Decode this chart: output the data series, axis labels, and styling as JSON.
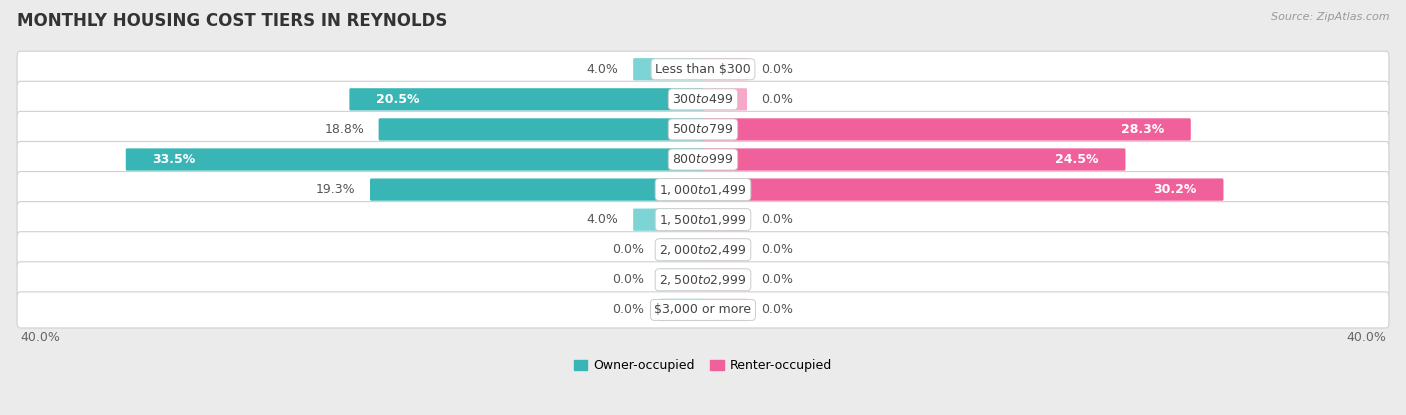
{
  "title": "MONTHLY HOUSING COST TIERS IN REYNOLDS",
  "source": "Source: ZipAtlas.com",
  "categories": [
    "Less than $300",
    "$300 to $499",
    "$500 to $799",
    "$800 to $999",
    "$1,000 to $1,499",
    "$1,500 to $1,999",
    "$2,000 to $2,499",
    "$2,500 to $2,999",
    "$3,000 or more"
  ],
  "owner_values": [
    4.0,
    20.5,
    18.8,
    33.5,
    19.3,
    4.0,
    0.0,
    0.0,
    0.0
  ],
  "renter_values": [
    0.0,
    0.0,
    28.3,
    24.5,
    30.2,
    0.0,
    0.0,
    0.0,
    0.0
  ],
  "owner_color_dark": "#3ab5b5",
  "owner_color_light": "#7dd4d4",
  "renter_color_dark": "#f0609a",
  "renter_color_light": "#f5a8c8",
  "stub_size": 2.5,
  "max_value": 40.0,
  "axis_label_left": "40.0%",
  "axis_label_right": "40.0%",
  "background_color": "#ebebeb",
  "row_bg_color": "#ffffff",
  "bar_height": 0.62,
  "title_fontsize": 12,
  "label_fontsize": 9,
  "category_fontsize": 9,
  "legend_fontsize": 9,
  "source_fontsize": 8
}
